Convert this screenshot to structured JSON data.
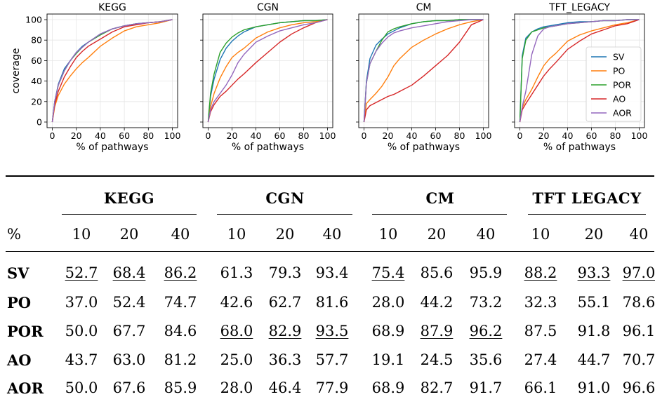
{
  "chart_data": [
    {
      "type": "line",
      "title": "KEGG",
      "xlabel": "% of pathways",
      "ylabel": "coverage",
      "xlim": [
        0,
        100
      ],
      "ylim": [
        0,
        100
      ],
      "xticks": [
        "0",
        "20",
        "40",
        "60",
        "80",
        "100"
      ],
      "yticks": [
        "0",
        "20",
        "40",
        "60",
        "80",
        "100"
      ],
      "grid": true,
      "series": [
        {
          "name": "SV",
          "color": "#1f77b4",
          "x": [
            0,
            2,
            5,
            10,
            15,
            20,
            25,
            30,
            40,
            50,
            60,
            70,
            80,
            90,
            100
          ],
          "y": [
            0,
            20,
            37,
            52,
            60,
            68,
            74,
            78,
            86,
            91,
            94,
            96,
            97,
            98,
            100
          ]
        },
        {
          "name": "PO",
          "color": "#ff7f0e",
          "x": [
            0,
            2,
            5,
            10,
            15,
            20,
            25,
            30,
            40,
            50,
            60,
            70,
            80,
            90,
            100
          ],
          "y": [
            0,
            15,
            26,
            37,
            45,
            52,
            58,
            63,
            74,
            82,
            89,
            93,
            95,
            97,
            100
          ]
        },
        {
          "name": "POR",
          "color": "#2ca02c",
          "x": [
            0,
            2,
            5,
            10,
            15,
            20,
            25,
            30,
            40,
            50,
            60,
            70,
            80,
            90,
            100
          ],
          "y": [
            0,
            20,
            36,
            50,
            60,
            67,
            73,
            78,
            85,
            91,
            94,
            96,
            97,
            98,
            100
          ]
        },
        {
          "name": "AO",
          "color": "#d62728",
          "x": [
            0,
            2,
            5,
            10,
            15,
            20,
            25,
            30,
            40,
            50,
            60,
            70,
            80,
            90,
            100
          ],
          "y": [
            0,
            17,
            30,
            44,
            54,
            63,
            69,
            74,
            81,
            88,
            93,
            95,
            97,
            98,
            100
          ]
        },
        {
          "name": "AOR",
          "color": "#9467bd",
          "x": [
            0,
            2,
            5,
            10,
            15,
            20,
            25,
            30,
            40,
            50,
            60,
            70,
            80,
            90,
            100
          ],
          "y": [
            0,
            20,
            36,
            50,
            60,
            68,
            73,
            78,
            86,
            91,
            94,
            96,
            97,
            98,
            100
          ]
        }
      ]
    },
    {
      "type": "line",
      "title": "CGN",
      "xlabel": "% of pathways",
      "xlim": [
        0,
        100
      ],
      "ylim": [
        0,
        100
      ],
      "xticks": [
        "0",
        "20",
        "40",
        "60",
        "80",
        "100"
      ],
      "grid": true,
      "series": [
        {
          "name": "SV",
          "color": "#1f77b4",
          "x": [
            0,
            2,
            5,
            10,
            15,
            20,
            25,
            30,
            40,
            50,
            60,
            70,
            80,
            90,
            100
          ],
          "y": [
            0,
            25,
            42,
            61,
            72,
            79,
            84,
            88,
            93,
            95,
            97,
            98,
            99,
            99,
            100
          ]
        },
        {
          "name": "PO",
          "color": "#ff7f0e",
          "x": [
            0,
            2,
            5,
            10,
            15,
            20,
            25,
            30,
            40,
            50,
            60,
            70,
            80,
            90,
            100
          ],
          "y": [
            0,
            15,
            28,
            43,
            54,
            63,
            68,
            72,
            82,
            88,
            92,
            95,
            97,
            98,
            100
          ]
        },
        {
          "name": "POR",
          "color": "#2ca02c",
          "x": [
            0,
            2,
            5,
            10,
            15,
            20,
            25,
            30,
            40,
            50,
            60,
            70,
            80,
            90,
            100
          ],
          "y": [
            0,
            28,
            47,
            68,
            77,
            83,
            87,
            90,
            93,
            95,
            97,
            98,
            99,
            99,
            100
          ]
        },
        {
          "name": "AO",
          "color": "#d62728",
          "x": [
            0,
            2,
            5,
            10,
            15,
            20,
            25,
            30,
            40,
            50,
            60,
            70,
            80,
            90,
            100
          ],
          "y": [
            0,
            10,
            17,
            25,
            30,
            36,
            42,
            47,
            58,
            68,
            78,
            86,
            92,
            97,
            100
          ]
        },
        {
          "name": "AOR",
          "color": "#9467bd",
          "x": [
            0,
            2,
            5,
            10,
            15,
            20,
            25,
            30,
            40,
            50,
            60,
            70,
            80,
            90,
            100
          ],
          "y": [
            0,
            12,
            20,
            28,
            36,
            46,
            58,
            66,
            78,
            84,
            89,
            92,
            95,
            97,
            100
          ]
        }
      ]
    },
    {
      "type": "line",
      "title": "CM",
      "xlabel": "% of pathways",
      "xlim": [
        0,
        100
      ],
      "ylim": [
        0,
        100
      ],
      "xticks": [
        "0",
        "20",
        "40",
        "60",
        "80",
        "100"
      ],
      "grid": true,
      "series": [
        {
          "name": "SV",
          "color": "#1f77b4",
          "x": [
            0,
            2,
            5,
            10,
            15,
            20,
            25,
            30,
            40,
            50,
            60,
            70,
            80,
            90,
            100
          ],
          "y": [
            0,
            40,
            62,
            75,
            81,
            86,
            89,
            92,
            96,
            98,
            99,
            99,
            100,
            100,
            100
          ]
        },
        {
          "name": "PO",
          "color": "#ff7f0e",
          "x": [
            0,
            2,
            5,
            10,
            15,
            20,
            25,
            30,
            40,
            50,
            60,
            70,
            80,
            90,
            100
          ],
          "y": [
            0,
            18,
            22,
            28,
            35,
            44,
            55,
            62,
            73,
            80,
            86,
            91,
            95,
            98,
            100
          ]
        },
        {
          "name": "POR",
          "color": "#2ca02c",
          "x": [
            0,
            2,
            5,
            10,
            15,
            20,
            25,
            30,
            40,
            50,
            60,
            70,
            80,
            90,
            100
          ],
          "y": [
            0,
            38,
            57,
            69,
            80,
            88,
            91,
            93,
            96,
            98,
            99,
            99,
            100,
            100,
            100
          ]
        },
        {
          "name": "AO",
          "color": "#d62728",
          "x": [
            0,
            2,
            5,
            10,
            15,
            20,
            25,
            30,
            40,
            50,
            60,
            70,
            80,
            90,
            100
          ],
          "y": [
            0,
            12,
            16,
            19,
            22,
            25,
            27,
            30,
            36,
            45,
            55,
            65,
            78,
            95,
            100
          ]
        },
        {
          "name": "AOR",
          "color": "#9467bd",
          "x": [
            0,
            2,
            5,
            10,
            15,
            20,
            25,
            30,
            40,
            50,
            60,
            70,
            80,
            90,
            100
          ],
          "y": [
            0,
            38,
            57,
            69,
            77,
            83,
            87,
            89,
            92,
            94,
            96,
            98,
            99,
            100,
            100
          ]
        }
      ]
    },
    {
      "type": "line",
      "title": "TFT_LEGACY",
      "xlabel": "% of pathways",
      "xlim": [
        0,
        100
      ],
      "ylim": [
        0,
        100
      ],
      "xticks": [
        "0",
        "20",
        "40",
        "60",
        "80",
        "100"
      ],
      "grid": true,
      "legend": "center-right",
      "series": [
        {
          "name": "SV",
          "color": "#1f77b4",
          "x": [
            0,
            2,
            5,
            10,
            15,
            20,
            25,
            30,
            40,
            50,
            60,
            70,
            80,
            90,
            100
          ],
          "y": [
            0,
            65,
            82,
            88,
            91,
            93,
            94,
            95,
            97,
            98,
            98,
            99,
            99,
            100,
            100
          ]
        },
        {
          "name": "PO",
          "color": "#ff7f0e",
          "x": [
            0,
            2,
            5,
            10,
            15,
            20,
            25,
            30,
            40,
            50,
            60,
            70,
            80,
            90,
            100
          ],
          "y": [
            0,
            14,
            22,
            32,
            44,
            55,
            62,
            67,
            79,
            85,
            89,
            92,
            95,
            97,
            100
          ]
        },
        {
          "name": "POR",
          "color": "#2ca02c",
          "x": [
            0,
            2,
            5,
            10,
            15,
            20,
            25,
            30,
            40,
            50,
            60,
            70,
            80,
            90,
            100
          ],
          "y": [
            0,
            62,
            80,
            88,
            90,
            92,
            93,
            94,
            96,
            97,
            98,
            99,
            99,
            100,
            100
          ]
        },
        {
          "name": "AO",
          "color": "#d62728",
          "x": [
            0,
            2,
            5,
            10,
            15,
            20,
            25,
            30,
            40,
            50,
            60,
            70,
            80,
            90,
            100
          ],
          "y": [
            0,
            12,
            18,
            27,
            36,
            45,
            52,
            58,
            71,
            79,
            86,
            90,
            94,
            96,
            100
          ]
        },
        {
          "name": "AOR",
          "color": "#9467bd",
          "x": [
            0,
            2,
            5,
            10,
            15,
            20,
            25,
            30,
            40,
            50,
            60,
            70,
            80,
            90,
            100
          ],
          "y": [
            0,
            15,
            30,
            66,
            84,
            91,
            93,
            94,
            96,
            97,
            98,
            99,
            99,
            100,
            100
          ]
        }
      ]
    },
    {
      "type": "table",
      "pct_label": "%",
      "groups": [
        "KEGG",
        "CGN",
        "CM",
        "TFT LEGACY"
      ],
      "columns": [
        "10",
        "20",
        "40",
        "10",
        "20",
        "40",
        "10",
        "20",
        "40",
        "10",
        "20",
        "40"
      ],
      "rows": [
        {
          "label": "SV",
          "values": [
            "52.7",
            "68.4",
            "86.2",
            "61.3",
            "79.3",
            "93.4",
            "75.4",
            "85.6",
            "95.9",
            "88.2",
            "93.3",
            "97.0"
          ],
          "underline": [
            true,
            true,
            true,
            false,
            false,
            false,
            true,
            false,
            false,
            true,
            true,
            true
          ]
        },
        {
          "label": "PO",
          "values": [
            "37.0",
            "52.4",
            "74.7",
            "42.6",
            "62.7",
            "81.6",
            "28.0",
            "44.2",
            "73.2",
            "32.3",
            "55.1",
            "78.6"
          ],
          "underline": [
            false,
            false,
            false,
            false,
            false,
            false,
            false,
            false,
            false,
            false,
            false,
            false
          ]
        },
        {
          "label": "POR",
          "values": [
            "50.0",
            "67.7",
            "84.6",
            "68.0",
            "82.9",
            "93.5",
            "68.9",
            "87.9",
            "96.2",
            "87.5",
            "91.8",
            "96.1"
          ],
          "underline": [
            false,
            false,
            false,
            true,
            true,
            true,
            false,
            true,
            true,
            false,
            false,
            false
          ]
        },
        {
          "label": "AO",
          "values": [
            "43.7",
            "63.0",
            "81.2",
            "25.0",
            "36.3",
            "57.7",
            "19.1",
            "24.5",
            "35.6",
            "27.4",
            "44.7",
            "70.7"
          ],
          "underline": [
            false,
            false,
            false,
            false,
            false,
            false,
            false,
            false,
            false,
            false,
            false,
            false
          ]
        },
        {
          "label": "AOR",
          "values": [
            "50.0",
            "67.6",
            "85.9",
            "28.0",
            "46.4",
            "77.9",
            "68.9",
            "82.7",
            "91.7",
            "66.1",
            "91.0",
            "96.6"
          ],
          "underline": [
            false,
            false,
            false,
            false,
            false,
            false,
            false,
            false,
            false,
            false,
            false,
            false
          ]
        }
      ]
    }
  ]
}
